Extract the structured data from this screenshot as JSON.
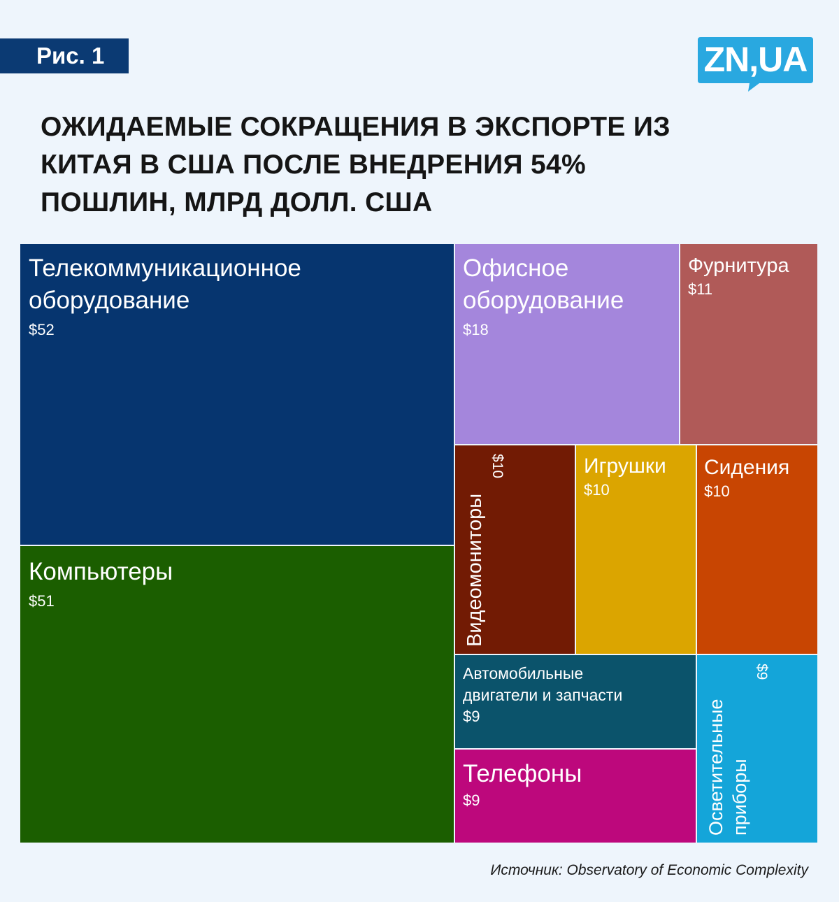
{
  "badge": "Рис. 1",
  "logo": {
    "text": "ZN,UA",
    "color": "#29a8e0"
  },
  "title_lines": [
    "ОЖИДАЕМЫЕ СОКРАЩЕНИЯ В ЭКСПОРТЕ ИЗ",
    "КИТАЯ В США ПОСЛЕ ВНЕДРЕНИЯ 54%",
    "ПОШЛИН, МЛРД ДОЛЛ. США"
  ],
  "source": "Источник: Observatory of Economic Complexity",
  "chart_data": {
    "type": "treemap",
    "title": "ОЖИДАЕМЫЕ СОКРАЩЕНИЯ В ЭКСПОРТЕ ИЗ КИТАЯ В США ПОСЛЕ ВНЕДРЕНИЯ 54% ПОШЛИН, МЛРД ДОЛЛ. США",
    "unit": "млрд долл. США",
    "items": [
      {
        "label": "Телекоммуникационное оборудование",
        "value": 52,
        "value_label": "$52",
        "color": "#06356f"
      },
      {
        "label": "Компьютеры",
        "value": 51,
        "value_label": "$51",
        "color": "#1b5e00"
      },
      {
        "label": "Офисное оборудование",
        "value": 18,
        "value_label": "$18",
        "color": "#a486dc"
      },
      {
        "label": "Фурнитура",
        "value": 11,
        "value_label": "$11",
        "color": "#b05a58"
      },
      {
        "label": "Видеомониторы",
        "value": 10,
        "value_label": "$10",
        "color": "#721b04"
      },
      {
        "label": "Игрушки",
        "value": 10,
        "value_label": "$10",
        "color": "#dba500"
      },
      {
        "label": "Сидения",
        "value": 10,
        "value_label": "$10",
        "color": "#c84502"
      },
      {
        "label": "Автомобильные двигатели и запчасти",
        "value": 9,
        "value_label": "$9",
        "color": "#0b536b"
      },
      {
        "label": "Телефоны",
        "value": 9,
        "value_label": "$9",
        "color": "#bd087c"
      },
      {
        "label": "Осветительные приборы",
        "value": 9,
        "value_label": "$9",
        "color": "#14a5d9"
      }
    ]
  }
}
